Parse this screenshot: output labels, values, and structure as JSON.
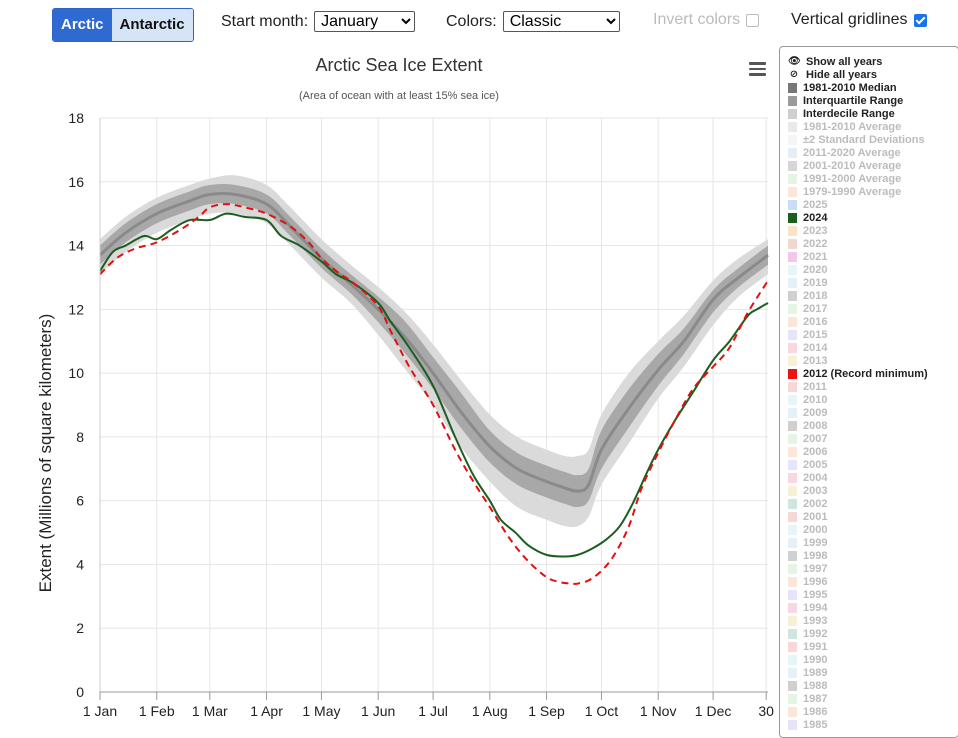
{
  "hemisphere": {
    "arctic": "Arctic",
    "antarctic": "Antarctic"
  },
  "controls": {
    "start_month_label": "Start month:",
    "start_month_value": "January",
    "colors_label": "Colors:",
    "colors_value": "Classic",
    "invert_label": "Invert colors",
    "invert_checked": false,
    "gridlines_label": "Vertical gridlines",
    "gridlines_checked": true
  },
  "legend": {
    "show_all": "Show all years",
    "hide_all": "Hide all years",
    "items": [
      {
        "label": "1981-2010 Median",
        "color": "#777777",
        "active": true
      },
      {
        "label": "Interquartile Range",
        "color": "#9a9a9a",
        "active": true
      },
      {
        "label": "Interdecile Range",
        "color": "#cfcfcf",
        "active": true
      },
      {
        "label": "1981-2010 Average",
        "color": "#d7d7d7",
        "active": false
      },
      {
        "label": "±2 Standard Deviations",
        "color": "#ececec",
        "active": false
      },
      {
        "label": "2011-2020 Average",
        "color": "#cfe0f0",
        "active": false
      },
      {
        "label": "2001-2010 Average",
        "color": "#b5b5b5",
        "active": false
      },
      {
        "label": "1991-2000 Average",
        "color": "#cdeccd",
        "active": false
      },
      {
        "label": "1979-1990 Average",
        "color": "#f5d3b6",
        "active": false
      },
      {
        "label": "2025",
        "color": "#9cc3ea",
        "active": false
      },
      {
        "label": "2024",
        "color": "#1b5e20",
        "active": true
      },
      {
        "label": "2023",
        "color": "#f5c99e",
        "active": false
      },
      {
        "label": "2022",
        "color": "#e0b8a8",
        "active": false
      },
      {
        "label": "2021",
        "color": "#e29ad8",
        "active": false
      },
      {
        "label": "2020",
        "color": "#d1ecf2",
        "active": false
      },
      {
        "label": "2019",
        "color": "#cfe4f4",
        "active": false
      },
      {
        "label": "2018",
        "color": "#aaaaaa",
        "active": false
      },
      {
        "label": "2017",
        "color": "#cdeccd",
        "active": false
      },
      {
        "label": "2016",
        "color": "#f5d3b6",
        "active": false
      },
      {
        "label": "2015",
        "color": "#cfcdf2",
        "active": false
      },
      {
        "label": "2014",
        "color": "#f3b6c6",
        "active": false
      },
      {
        "label": "2013",
        "color": "#efe3b0",
        "active": false
      },
      {
        "label": "2012 (Record minimum)",
        "color": "#ee1111",
        "active": true
      },
      {
        "label": "2011",
        "color": "#f3b6b6",
        "active": false
      },
      {
        "label": "2010",
        "color": "#d1ecf2",
        "active": false
      },
      {
        "label": "2009",
        "color": "#cfe4f4",
        "active": false
      },
      {
        "label": "2008",
        "color": "#aaaaaa",
        "active": false
      },
      {
        "label": "2007",
        "color": "#cdeccd",
        "active": false
      },
      {
        "label": "2006",
        "color": "#f5d3b6",
        "active": false
      },
      {
        "label": "2005",
        "color": "#cfcdf2",
        "active": false
      },
      {
        "label": "2004",
        "color": "#f3b6c6",
        "active": false
      },
      {
        "label": "2003",
        "color": "#efe3b0",
        "active": false
      },
      {
        "label": "2002",
        "color": "#a8d2c4",
        "active": false
      },
      {
        "label": "2001",
        "color": "#f3b6b6",
        "active": false
      },
      {
        "label": "2000",
        "color": "#d1ecf2",
        "active": false
      },
      {
        "label": "1999",
        "color": "#cfe4f4",
        "active": false
      },
      {
        "label": "1998",
        "color": "#aaaaaa",
        "active": false
      },
      {
        "label": "1997",
        "color": "#cdeccd",
        "active": false
      },
      {
        "label": "1996",
        "color": "#f5d3b6",
        "active": false
      },
      {
        "label": "1995",
        "color": "#cfcdf2",
        "active": false
      },
      {
        "label": "1994",
        "color": "#f3b6c6",
        "active": false
      },
      {
        "label": "1993",
        "color": "#efe3b0",
        "active": false
      },
      {
        "label": "1992",
        "color": "#a8d2c4",
        "active": false
      },
      {
        "label": "1991",
        "color": "#f3b6b6",
        "active": false
      },
      {
        "label": "1990",
        "color": "#d1ecf2",
        "active": false
      },
      {
        "label": "1989",
        "color": "#cfe4f4",
        "active": false
      },
      {
        "label": "1988",
        "color": "#aaaaaa",
        "active": false
      },
      {
        "label": "1987",
        "color": "#cdeccd",
        "active": false
      },
      {
        "label": "1986",
        "color": "#f5d3b6",
        "active": false
      },
      {
        "label": "1985",
        "color": "#cfcdf2",
        "active": false
      }
    ]
  },
  "chart_data": {
    "type": "line",
    "title": "Arctic Sea Ice Extent",
    "subtitle": "(Area of ocean with at least 15% sea ice)",
    "ylabel": "Extent (Millions of square kilometers)",
    "xlabel": "",
    "ylim": [
      0,
      18
    ],
    "yticks": [
      0,
      2,
      4,
      6,
      8,
      10,
      12,
      14,
      16,
      18
    ],
    "xlim": [
      1,
      366
    ],
    "xticks": [
      {
        "day": 1,
        "label": "1 Jan"
      },
      {
        "day": 32,
        "label": "1 Feb"
      },
      {
        "day": 61,
        "label": "1 Mar"
      },
      {
        "day": 92,
        "label": "1 Apr"
      },
      {
        "day": 122,
        "label": "1 May"
      },
      {
        "day": 153,
        "label": "1 Jun"
      },
      {
        "day": 183,
        "label": "1 Jul"
      },
      {
        "day": 214,
        "label": "1 Aug"
      },
      {
        "day": 245,
        "label": "1 Sep"
      },
      {
        "day": 275,
        "label": "1 Oct"
      },
      {
        "day": 306,
        "label": "1 Nov"
      },
      {
        "day": 336,
        "label": "1 Dec"
      },
      {
        "day": 365,
        "label": "30"
      }
    ],
    "vertical_gridlines": true,
    "series": [
      {
        "name": "1981-2010 Median",
        "role": "median",
        "color": "#8a8a8a",
        "x": [
          1,
          15,
          32,
          50,
          61,
          75,
          92,
          105,
          122,
          138,
          153,
          168,
          183,
          198,
          214,
          229,
          245,
          255,
          262,
          268,
          275,
          290,
          306,
          320,
          336,
          350,
          366
        ],
        "y": [
          13.7,
          14.4,
          15.0,
          15.4,
          15.6,
          15.6,
          15.3,
          14.6,
          13.6,
          12.8,
          12.0,
          11.1,
          10.0,
          8.8,
          7.7,
          7.0,
          6.6,
          6.4,
          6.3,
          6.5,
          7.6,
          8.9,
          10.1,
          11.0,
          12.3,
          13.0,
          13.7
        ]
      },
      {
        "name": "Interquartile Range",
        "role": "band",
        "color": "#a8a8a8",
        "x": [
          1,
          15,
          32,
          50,
          61,
          75,
          92,
          105,
          122,
          138,
          153,
          168,
          183,
          198,
          214,
          229,
          245,
          255,
          262,
          268,
          275,
          290,
          306,
          320,
          336,
          350,
          366
        ],
        "low": [
          13.4,
          14.1,
          14.7,
          15.1,
          15.3,
          15.3,
          15.0,
          14.3,
          13.3,
          12.5,
          11.6,
          10.6,
          9.5,
          8.3,
          7.2,
          6.5,
          6.1,
          5.9,
          5.8,
          6.0,
          7.0,
          8.3,
          9.6,
          10.6,
          11.9,
          12.7,
          13.4
        ],
        "high": [
          14.0,
          14.7,
          15.3,
          15.7,
          15.9,
          15.9,
          15.6,
          14.9,
          13.9,
          13.1,
          12.4,
          11.6,
          10.5,
          9.4,
          8.2,
          7.5,
          7.1,
          6.9,
          6.8,
          7.0,
          8.2,
          9.5,
          10.6,
          11.4,
          12.6,
          13.3,
          14.0
        ]
      },
      {
        "name": "Interdecile Range",
        "role": "band",
        "color": "#dadada",
        "x": [
          1,
          15,
          32,
          50,
          61,
          75,
          92,
          105,
          122,
          138,
          153,
          168,
          183,
          198,
          214,
          229,
          245,
          255,
          262,
          268,
          275,
          290,
          306,
          320,
          336,
          350,
          366
        ],
        "low": [
          13.1,
          13.8,
          14.4,
          14.8,
          15.0,
          15.0,
          14.7,
          14.0,
          13.0,
          12.2,
          11.2,
          10.1,
          9.0,
          7.7,
          6.6,
          5.8,
          5.4,
          5.2,
          5.2,
          5.5,
          6.5,
          7.8,
          9.2,
          10.2,
          11.5,
          12.4,
          13.1
        ],
        "high": [
          14.2,
          14.9,
          15.5,
          15.9,
          16.1,
          16.2,
          15.9,
          15.2,
          14.2,
          13.4,
          12.7,
          11.9,
          10.9,
          9.8,
          8.7,
          8.0,
          7.6,
          7.4,
          7.4,
          7.6,
          8.7,
          10.0,
          11.0,
          11.8,
          12.9,
          13.6,
          14.2
        ]
      },
      {
        "name": "2024",
        "role": "line",
        "color": "#1b5e20",
        "dash": false,
        "x": [
          1,
          8,
          15,
          25,
          32,
          40,
          50,
          61,
          70,
          80,
          92,
          100,
          110,
          122,
          130,
          140,
          153,
          160,
          170,
          183,
          195,
          205,
          214,
          220,
          228,
          235,
          245,
          255,
          262,
          270,
          278,
          285,
          292,
          300,
          306,
          315,
          325,
          336,
          345,
          355,
          360,
          366
        ],
        "y": [
          13.2,
          13.8,
          14.0,
          14.3,
          14.2,
          14.5,
          14.8,
          14.8,
          15.0,
          14.9,
          14.8,
          14.3,
          14.0,
          13.5,
          13.1,
          12.8,
          12.2,
          11.6,
          10.8,
          9.6,
          8.0,
          6.8,
          6.0,
          5.4,
          5.0,
          4.6,
          4.3,
          4.25,
          4.3,
          4.5,
          4.8,
          5.2,
          5.9,
          6.9,
          7.6,
          8.5,
          9.4,
          10.4,
          11.0,
          11.8,
          12.0,
          12.2
        ]
      },
      {
        "name": "2012 (Record minimum)",
        "role": "line",
        "color": "#e01010",
        "dash": true,
        "x": [
          1,
          10,
          20,
          32,
          45,
          55,
          61,
          70,
          80,
          92,
          105,
          115,
          122,
          130,
          140,
          153,
          160,
          170,
          183,
          195,
          205,
          214,
          225,
          235,
          245,
          252,
          258,
          262,
          268,
          275,
          282,
          290,
          297,
          306,
          315,
          325,
          336,
          345,
          355,
          366
        ],
        "y": [
          13.1,
          13.6,
          13.9,
          14.1,
          14.5,
          14.9,
          15.2,
          15.3,
          15.2,
          15.0,
          14.6,
          14.1,
          13.6,
          13.2,
          12.8,
          12.1,
          11.3,
          10.2,
          9.0,
          7.6,
          6.6,
          5.8,
          4.8,
          4.1,
          3.6,
          3.45,
          3.4,
          3.4,
          3.5,
          3.8,
          4.3,
          5.2,
          6.4,
          7.5,
          8.5,
          9.5,
          10.2,
          10.8,
          11.9,
          12.9
        ]
      }
    ]
  }
}
